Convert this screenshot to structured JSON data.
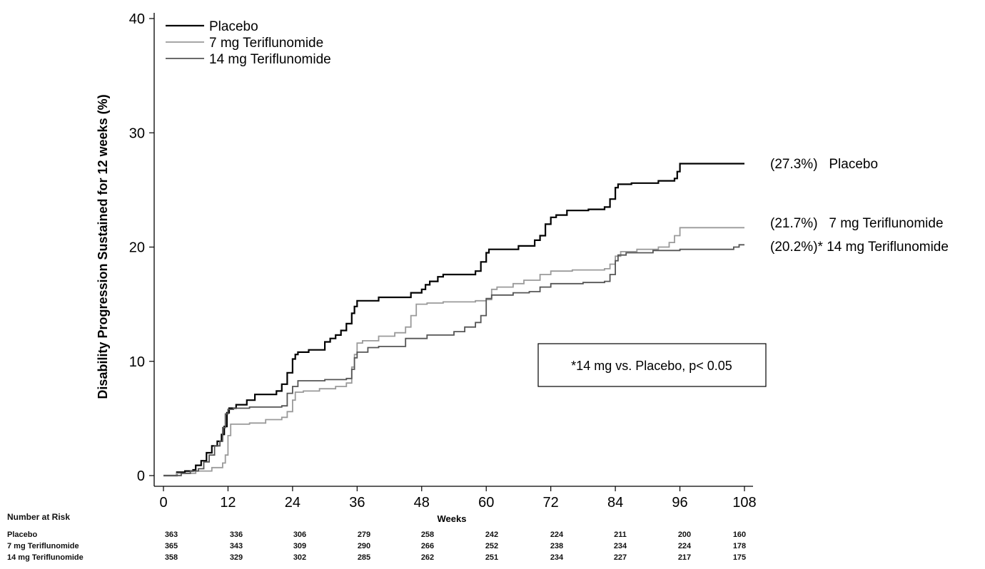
{
  "chart_data": {
    "type": "line",
    "line_style": "step",
    "ylabel": "Disability Progression Sustained for 12 weeks (%)",
    "xlabel": "Weeks",
    "xlim": [
      0,
      108
    ],
    "ylim": [
      0,
      40
    ],
    "x_ticks": [
      "0",
      "12",
      "24",
      "36",
      "48",
      "60",
      "72",
      "84",
      "96",
      "108"
    ],
    "y_ticks": [
      "0",
      "10",
      "20",
      "30",
      "40"
    ],
    "legend_position": "top-left",
    "annotation": "*14 mg vs. Placebo, p< 0.05",
    "colors": {
      "placebo": "#000000",
      "mg7": "#9a9a9a",
      "mg14": "#555555"
    },
    "series": [
      {
        "name": "Placebo",
        "end_label": "(27.3%)   Placebo",
        "points": [
          [
            0,
            0
          ],
          [
            2,
            0
          ],
          [
            2.5,
            0.3
          ],
          [
            4,
            0.4
          ],
          [
            5.5,
            0.5
          ],
          [
            6,
            0.9
          ],
          [
            7,
            1.3
          ],
          [
            8,
            2.0
          ],
          [
            9,
            2.6
          ],
          [
            10,
            3.0
          ],
          [
            10.8,
            3.6
          ],
          [
            11.3,
            4.3
          ],
          [
            11.8,
            5.5
          ],
          [
            12.2,
            5.9
          ],
          [
            13.5,
            6.2
          ],
          [
            15.5,
            6.6
          ],
          [
            17,
            7.1
          ],
          [
            21,
            7.4
          ],
          [
            22,
            8.0
          ],
          [
            23,
            9.0
          ],
          [
            24,
            10.2
          ],
          [
            24.5,
            10.6
          ],
          [
            25,
            10.8
          ],
          [
            27,
            11.0
          ],
          [
            30,
            11.7
          ],
          [
            31,
            12.0
          ],
          [
            32,
            12.3
          ],
          [
            33,
            12.7
          ],
          [
            34,
            13.3
          ],
          [
            35,
            14.2
          ],
          [
            35.5,
            14.8
          ],
          [
            36,
            15.3
          ],
          [
            40,
            15.6
          ],
          [
            46,
            16.0
          ],
          [
            48,
            16.3
          ],
          [
            48.7,
            16.7
          ],
          [
            49.5,
            17.0
          ],
          [
            51,
            17.4
          ],
          [
            52,
            17.6
          ],
          [
            58,
            17.9
          ],
          [
            59,
            18.7
          ],
          [
            60,
            19.5
          ],
          [
            60.5,
            19.8
          ],
          [
            66,
            20.1
          ],
          [
            69,
            20.6
          ],
          [
            70,
            21.0
          ],
          [
            71,
            22.0
          ],
          [
            72,
            22.6
          ],
          [
            73,
            22.8
          ],
          [
            75,
            23.2
          ],
          [
            79,
            23.3
          ],
          [
            82,
            23.5
          ],
          [
            83,
            24.2
          ],
          [
            84,
            25.2
          ],
          [
            84.5,
            25.5
          ],
          [
            87,
            25.6
          ],
          [
            92,
            25.8
          ],
          [
            95,
            26.0
          ],
          [
            95.5,
            26.6
          ],
          [
            96,
            27.3
          ],
          [
            108,
            27.3
          ]
        ]
      },
      {
        "name": "7 mg Teriflunomide",
        "end_label": "(21.7%)   7 mg Teriflunomide",
        "points": [
          [
            0,
            0
          ],
          [
            2,
            0
          ],
          [
            2.5,
            0.2
          ],
          [
            6,
            0.4
          ],
          [
            9,
            0.7
          ],
          [
            11,
            1.1
          ],
          [
            11.5,
            1.8
          ],
          [
            12,
            3.5
          ],
          [
            12.5,
            4.5
          ],
          [
            16,
            4.6
          ],
          [
            19,
            4.9
          ],
          [
            22,
            5.1
          ],
          [
            23,
            5.6
          ],
          [
            24,
            6.6
          ],
          [
            24.5,
            7.3
          ],
          [
            26,
            7.4
          ],
          [
            29,
            7.6
          ],
          [
            32,
            7.8
          ],
          [
            34,
            8.1
          ],
          [
            35,
            9.5
          ],
          [
            35.5,
            10.6
          ],
          [
            36,
            11.6
          ],
          [
            37,
            11.8
          ],
          [
            40,
            12.2
          ],
          [
            43,
            12.5
          ],
          [
            45,
            13.0
          ],
          [
            46,
            14.0
          ],
          [
            47,
            15.0
          ],
          [
            49,
            15.1
          ],
          [
            52,
            15.2
          ],
          [
            58,
            15.3
          ],
          [
            60,
            15.4
          ],
          [
            61,
            16.3
          ],
          [
            62,
            16.5
          ],
          [
            65,
            16.8
          ],
          [
            67,
            17.1
          ],
          [
            70,
            17.6
          ],
          [
            72,
            17.9
          ],
          [
            76,
            18.0
          ],
          [
            82,
            18.1
          ],
          [
            83,
            18.5
          ],
          [
            84,
            19.2
          ],
          [
            85,
            19.6
          ],
          [
            88,
            19.8
          ],
          [
            92,
            20.0
          ],
          [
            94,
            20.4
          ],
          [
            95,
            21.0
          ],
          [
            96,
            21.7
          ],
          [
            108,
            21.7
          ]
        ]
      },
      {
        "name": "14 mg Teriflunomide",
        "end_label": "(20.2%)* 14 mg Teriflunomide",
        "points": [
          [
            0,
            0
          ],
          [
            3,
            0
          ],
          [
            3.3,
            0.2
          ],
          [
            5,
            0.4
          ],
          [
            6.5,
            0.6
          ],
          [
            7.5,
            1.2
          ],
          [
            8.5,
            1.8
          ],
          [
            9.5,
            2.6
          ],
          [
            10.5,
            3.0
          ],
          [
            11,
            4.2
          ],
          [
            11.5,
            5.4
          ],
          [
            12,
            5.8
          ],
          [
            13,
            5.9
          ],
          [
            16,
            6.0
          ],
          [
            22,
            6.1
          ],
          [
            23,
            7.2
          ],
          [
            24,
            7.8
          ],
          [
            25,
            8.3
          ],
          [
            30,
            8.4
          ],
          [
            34,
            8.5
          ],
          [
            35,
            9.3
          ],
          [
            35.5,
            10.3
          ],
          [
            36,
            10.8
          ],
          [
            38,
            11.2
          ],
          [
            40,
            11.3
          ],
          [
            45,
            12.0
          ],
          [
            49,
            12.3
          ],
          [
            54,
            12.6
          ],
          [
            56,
            13.0
          ],
          [
            58,
            13.4
          ],
          [
            59,
            14.0
          ],
          [
            60,
            15.5
          ],
          [
            61,
            15.8
          ],
          [
            65,
            16.0
          ],
          [
            68,
            16.1
          ],
          [
            70,
            16.5
          ],
          [
            72,
            16.8
          ],
          [
            78,
            16.9
          ],
          [
            82,
            17.0
          ],
          [
            83,
            17.6
          ],
          [
            84,
            18.8
          ],
          [
            84.5,
            19.3
          ],
          [
            86,
            19.5
          ],
          [
            91,
            19.7
          ],
          [
            96,
            19.8
          ],
          [
            106,
            20.0
          ],
          [
            107,
            20.2
          ],
          [
            108,
            20.2
          ]
        ]
      }
    ],
    "number_at_risk": {
      "title": "Number at Risk",
      "rows": [
        {
          "label": "Placebo",
          "values": [
            "363",
            "336",
            "306",
            "279",
            "258",
            "242",
            "224",
            "211",
            "200",
            "160"
          ]
        },
        {
          "label": "7 mg Teriflunomide",
          "values": [
            "365",
            "343",
            "309",
            "290",
            "266",
            "252",
            "238",
            "234",
            "224",
            "178"
          ]
        },
        {
          "label": "14 mg Teriflunomide",
          "values": [
            "358",
            "329",
            "302",
            "285",
            "262",
            "251",
            "234",
            "227",
            "217",
            "175"
          ]
        }
      ]
    }
  }
}
